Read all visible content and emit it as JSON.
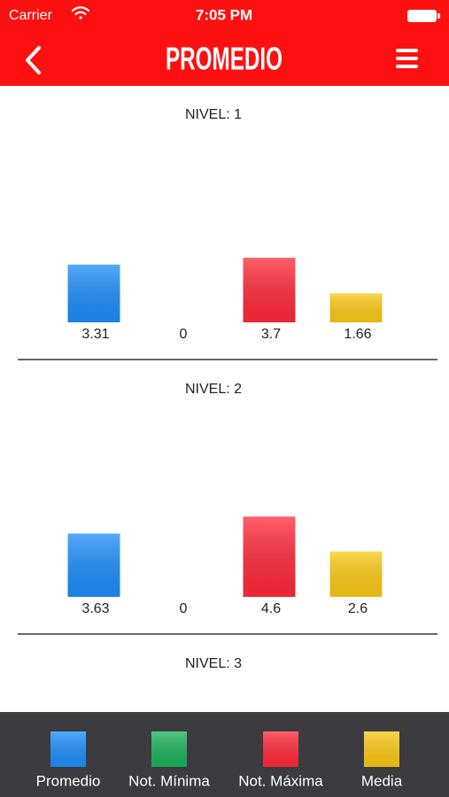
{
  "status_bar": {
    "carrier": "Carrier",
    "time": "7:05 PM"
  },
  "header": {
    "title": "PROMEDIO"
  },
  "legend": [
    {
      "name": "Promedio",
      "color": "#1e8ef8"
    },
    {
      "name": "Not. Mínima",
      "color": "#1cb25c"
    },
    {
      "name": "Not. Máxima",
      "color": "#ff2a3a"
    },
    {
      "name": "Media",
      "color": "#fbc916"
    }
  ],
  "chart_data": [
    {
      "type": "bar",
      "title": "NIVEL: 1",
      "values": [
        3.31,
        0,
        3.7,
        1.66
      ]
    },
    {
      "type": "bar",
      "title": "NIVEL: 2",
      "values": [
        3.63,
        0,
        4.6,
        2.6
      ]
    }
  ],
  "partial_section": {
    "title": "NIVEL: 3"
  }
}
